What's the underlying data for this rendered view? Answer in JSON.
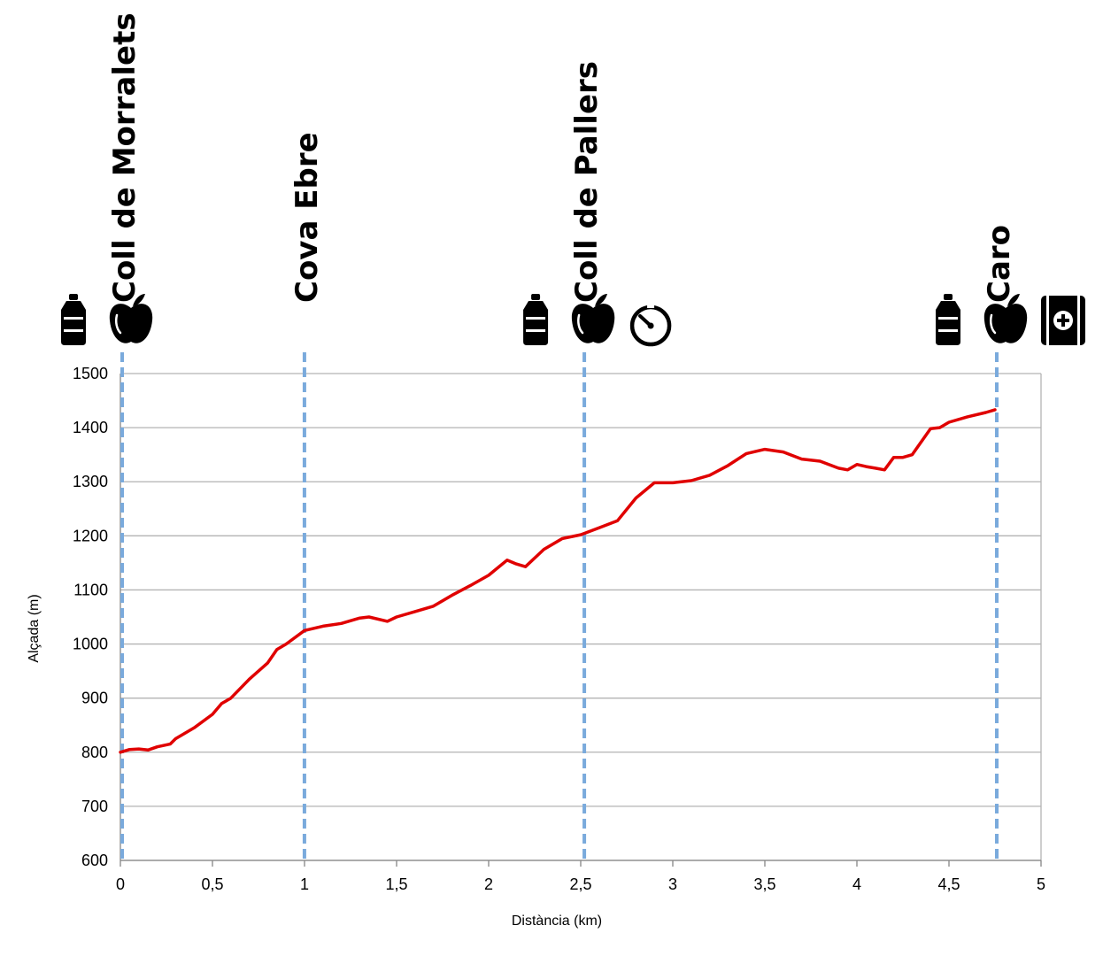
{
  "chart_data": {
    "type": "line",
    "xlabel": "Distància (km)",
    "ylabel": "Alçada (m)",
    "xlim": [
      0,
      5
    ],
    "ylim": [
      600,
      1500
    ],
    "x_ticks": [
      "0",
      "0,5",
      "1",
      "1,5",
      "2",
      "2,5",
      "3",
      "3,5",
      "4",
      "4,5",
      "5"
    ],
    "y_ticks": [
      "600",
      "700",
      "800",
      "900",
      "1000",
      "1100",
      "1200",
      "1300",
      "1400",
      "1500"
    ],
    "grid": "horizontal",
    "line_color": "#e00000",
    "marker_color": "#7aaadc",
    "series": [
      {
        "x": [
          0,
          0.05,
          0.1,
          0.15,
          0.2,
          0.27,
          0.3,
          0.4,
          0.5,
          0.55,
          0.6,
          0.7,
          0.8,
          0.85,
          0.9,
          1.0,
          1.1,
          1.2,
          1.3,
          1.35,
          1.45,
          1.5,
          1.6,
          1.7,
          1.8,
          1.9,
          2.0,
          2.1,
          2.15,
          2.2,
          2.3,
          2.4,
          2.5,
          2.6,
          2.7,
          2.8,
          2.9,
          3.0,
          3.1,
          3.2,
          3.3,
          3.4,
          3.5,
          3.6,
          3.7,
          3.8,
          3.9,
          3.95,
          4.0,
          4.05,
          4.1,
          4.15,
          4.2,
          4.25,
          4.3,
          4.4,
          4.45,
          4.5,
          4.6,
          4.7,
          4.75
        ],
        "y": [
          800,
          805,
          806,
          804,
          810,
          815,
          825,
          845,
          870,
          890,
          900,
          935,
          965,
          990,
          1000,
          1025,
          1033,
          1038,
          1048,
          1050,
          1042,
          1050,
          1060,
          1070,
          1090,
          1108,
          1127,
          1155,
          1148,
          1143,
          1175,
          1195,
          1202,
          1215,
          1228,
          1270,
          1298,
          1298,
          1302,
          1312,
          1330,
          1352,
          1360,
          1355,
          1342,
          1338,
          1325,
          1322,
          1332,
          1328,
          1325,
          1322,
          1345,
          1345,
          1350,
          1398,
          1400,
          1410,
          1420,
          1428,
          1433
        ]
      }
    ],
    "waypoints": [
      {
        "x": 0,
        "label": "Coll de Morralets",
        "icons": [
          "water-bottle-icon",
          "apple-icon"
        ]
      },
      {
        "x": 0.99,
        "label": "Cova Ebre",
        "icons": []
      },
      {
        "x": 2.51,
        "label": "Coll de Pallers",
        "icons": [
          "water-bottle-icon",
          "apple-icon",
          "timer-icon"
        ]
      },
      {
        "x": 4.75,
        "label": "Caro",
        "icons": [
          "water-bottle-icon",
          "apple-icon",
          "first-aid-icon"
        ]
      }
    ]
  }
}
